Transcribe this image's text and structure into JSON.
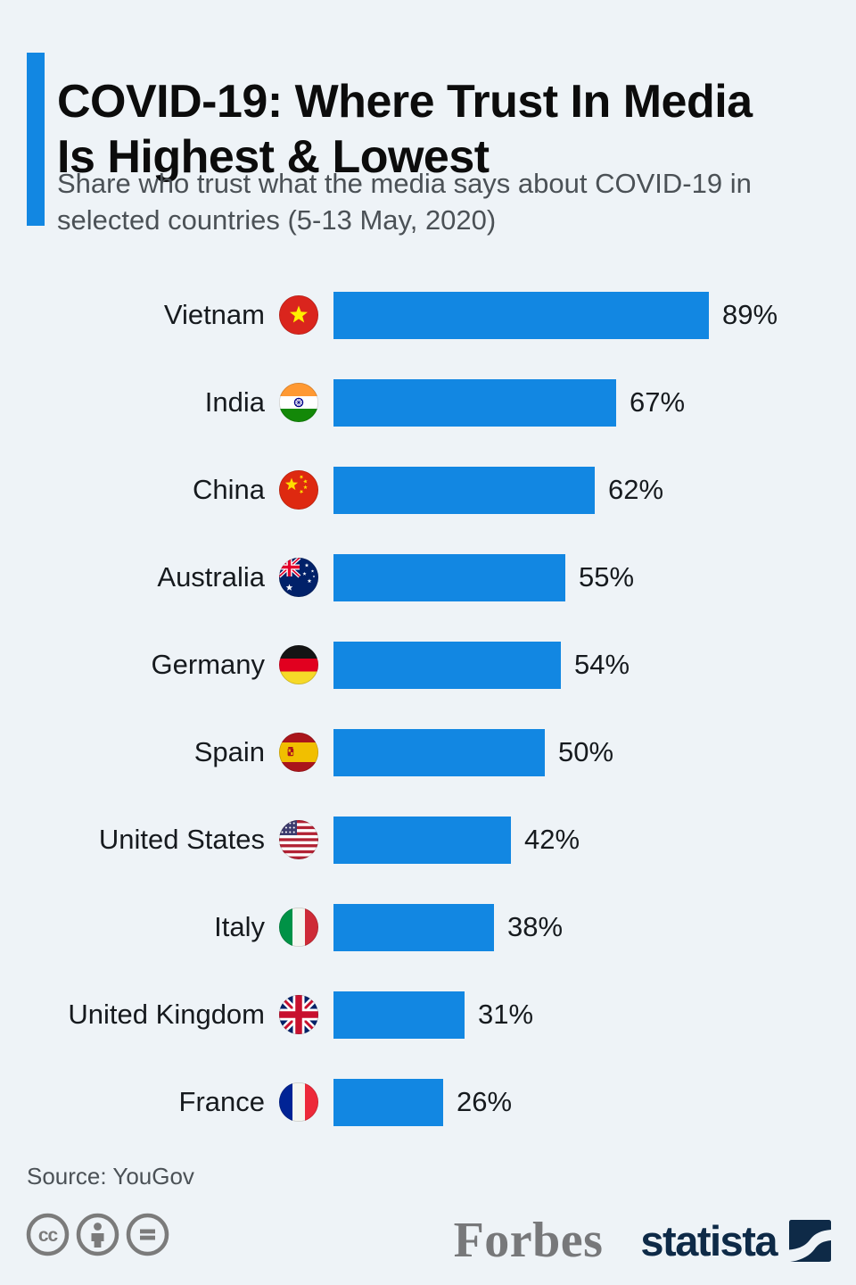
{
  "header": {
    "title": "COVID-19: Where Trust In Media Is Highest & Lowest",
    "subtitle": "Share who trust what the media says about COVID-19 in selected countries (5-13 May, 2020)"
  },
  "chart_data": {
    "type": "bar",
    "orientation": "horizontal",
    "title": "COVID-19: Where Trust In Media Is Highest & Lowest",
    "subtitle": "Share who trust what the media says about COVID-19 in selected countries (5-13 May, 2020)",
    "categories": [
      "Vietnam",
      "India",
      "China",
      "Australia",
      "Germany",
      "Spain",
      "United States",
      "Italy",
      "United Kingdom",
      "France"
    ],
    "values": [
      89,
      67,
      62,
      55,
      54,
      50,
      42,
      38,
      31,
      26
    ],
    "value_suffix": "%",
    "value_labels": "end-of-bar",
    "flag_icons": [
      "flag-vietnam-icon",
      "flag-india-icon",
      "flag-china-icon",
      "flag-australia-icon",
      "flag-germany-icon",
      "flag-spain-icon",
      "flag-united-states-icon",
      "flag-italy-icon",
      "flag-united-kingdom-icon",
      "flag-france-icon"
    ],
    "xlim": [
      0,
      100
    ],
    "grid": false,
    "legend": false,
    "bar_color": "#1287e2"
  },
  "footer": {
    "source": "Source: YouGov",
    "license_icons": [
      "creative-commons-icon",
      "attribution-person-icon",
      "no-derivatives-equals-icon"
    ],
    "brands": {
      "publisher": "Forbes",
      "provider": "statista"
    }
  },
  "colors": {
    "background": "#eef3f7",
    "accent_bar": "#1287e2",
    "bar": "#1287e2",
    "title_text": "#0c0c0c",
    "subtitle_text": "#4b5156",
    "source_text": "#4b5156",
    "license_icon": "#7b7b7b",
    "forbes_gray": "#77787a",
    "statista_navy": "#0e2a47"
  }
}
